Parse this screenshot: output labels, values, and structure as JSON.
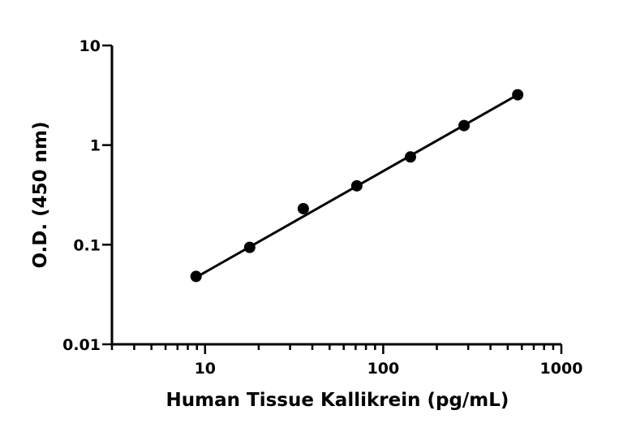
{
  "chart_data": {
    "type": "scatter",
    "xlabel": "Human Tissue Kallikrein (pg/mL)",
    "ylabel": "O.D. (450 nm)",
    "x_scale": "log",
    "y_scale": "log",
    "xlim": [
      3,
      1000
    ],
    "ylim": [
      0.01,
      10
    ],
    "x_ticks": [
      10,
      100,
      1000
    ],
    "x_tick_labels": [
      "10",
      "100",
      "1000"
    ],
    "y_ticks": [
      0.01,
      0.1,
      1,
      10
    ],
    "y_tick_labels": [
      "0.01",
      "0.1",
      "1",
      "10"
    ],
    "grid": false,
    "legend": "none",
    "series": [
      {
        "x": [
          8.9,
          17.8,
          35.6,
          71.1,
          142.2,
          284.4,
          568.8
        ],
        "y": [
          0.048,
          0.094,
          0.23,
          0.39,
          0.76,
          1.57,
          3.2
        ],
        "color": "#000000",
        "marker": "circle"
      }
    ],
    "fit_line": {
      "type": "log-log linear",
      "x_range": [
        8.9,
        568.8
      ],
      "y_range": [
        0.047,
        3.2
      ],
      "color": "#000000"
    }
  }
}
